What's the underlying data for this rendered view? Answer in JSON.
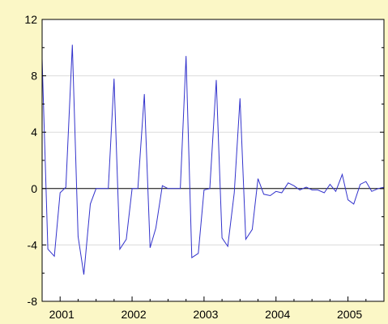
{
  "chart_data": {
    "type": "line",
    "title": "",
    "xlabel": "",
    "ylabel": "",
    "ylim": [
      -8,
      12
    ],
    "yticks": [
      -8,
      -4,
      0,
      4,
      8,
      12
    ],
    "xlim": [
      2000.75,
      2005.5
    ],
    "xticks": [
      {
        "label": "2001",
        "value": 2001.0
      },
      {
        "label": "2002",
        "value": 2002.0
      },
      {
        "label": "2003",
        "value": 2003.0
      },
      {
        "label": "2004",
        "value": 2004.0
      },
      {
        "label": "2005",
        "value": 2005.0
      }
    ],
    "grid": {
      "horizontal": true,
      "vertical": false
    },
    "zero_line": true,
    "legend": "none",
    "series": [
      {
        "color": "#3333cc",
        "x": [
          2000.75,
          2000.83,
          2000.92,
          2001.0,
          2001.08,
          2001.17,
          2001.25,
          2001.33,
          2001.42,
          2001.5,
          2001.58,
          2001.67,
          2001.75,
          2001.83,
          2001.92,
          2002.0,
          2002.08,
          2002.17,
          2002.25,
          2002.33,
          2002.42,
          2002.5,
          2002.58,
          2002.67,
          2002.75,
          2002.83,
          2002.92,
          2003.0,
          2003.08,
          2003.17,
          2003.25,
          2003.33,
          2003.42,
          2003.5,
          2003.58,
          2003.67,
          2003.75,
          2003.83,
          2003.92,
          2004.0,
          2004.08,
          2004.17,
          2004.25,
          2004.33,
          2004.42,
          2004.5,
          2004.58,
          2004.67,
          2004.75,
          2004.83,
          2004.92,
          2005.0,
          2005.08,
          2005.17,
          2005.25,
          2005.33,
          2005.42,
          2005.5
        ],
        "values": [
          9.2,
          -4.3,
          -4.8,
          -0.3,
          0.1,
          10.2,
          -3.4,
          -6.1,
          -1.1,
          0.0,
          0.0,
          0.0,
          7.8,
          -4.3,
          -3.6,
          0.0,
          0.0,
          6.7,
          -4.2,
          -2.8,
          0.2,
          0.0,
          0.0,
          0.0,
          9.4,
          -4.9,
          -4.6,
          -0.1,
          0.0,
          7.7,
          -3.5,
          -4.1,
          -0.3,
          6.4,
          -3.6,
          -2.9,
          0.7,
          -0.4,
          -0.5,
          -0.2,
          -0.3,
          0.4,
          0.2,
          -0.1,
          0.1,
          -0.1,
          -0.1,
          -0.3,
          0.3,
          -0.2,
          1.0,
          -0.8,
          -1.1,
          0.3,
          0.5,
          -0.2,
          0.0,
          0.1
        ]
      }
    ]
  }
}
